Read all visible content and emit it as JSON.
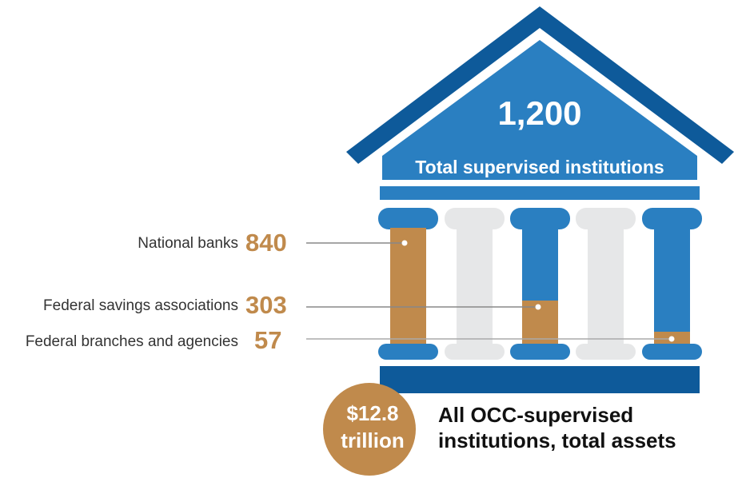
{
  "header": {
    "total": "1,200",
    "total_label": "Total supervised institutions"
  },
  "segments": [
    {
      "label": "National banks",
      "value": "840"
    },
    {
      "label": "Federal savings associations",
      "value": "303"
    },
    {
      "label": "Federal branches and agencies",
      "value": "57"
    }
  ],
  "assets": {
    "amount": "$12.8",
    "unit": "trillion",
    "label_line1": "All OCC-supervised",
    "label_line2": "institutions, total assets"
  }
}
